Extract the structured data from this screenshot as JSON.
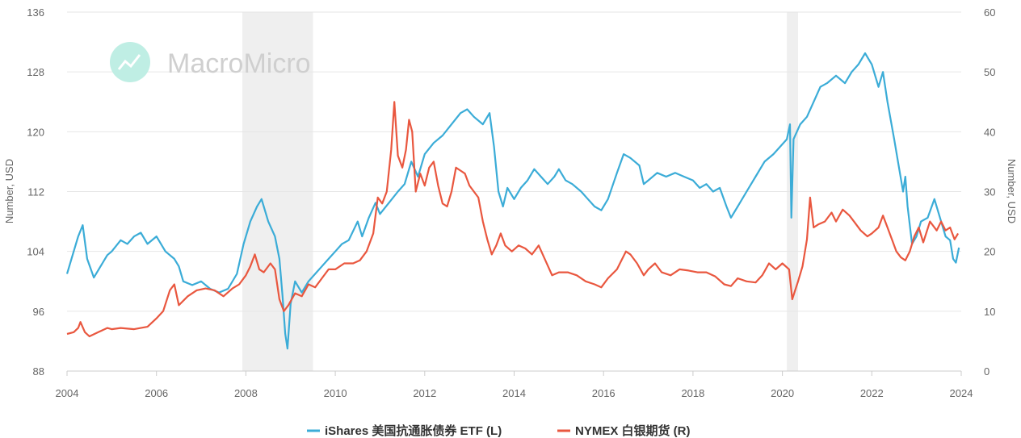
{
  "watermark": {
    "text": "MacroMicro"
  },
  "chart_data": {
    "type": "line",
    "x_ticks": [
      "2004",
      "2006",
      "2008",
      "2010",
      "2012",
      "2014",
      "2016",
      "2018",
      "2020",
      "2022",
      "2024"
    ],
    "y_left": {
      "label": "Number, USD",
      "min": 88,
      "max": 136,
      "ticks": [
        "88",
        "96",
        "104",
        "112",
        "120",
        "128",
        "136"
      ]
    },
    "y_right": {
      "label": "Number, USD",
      "min": 0,
      "max": 60,
      "ticks": [
        "0",
        "10",
        "20",
        "30",
        "40",
        "50",
        "60"
      ]
    },
    "recession_bands": [
      [
        2007.92,
        2009.5
      ],
      [
        2020.1,
        2020.35
      ]
    ],
    "grid": true,
    "legend_position": "bottom-center",
    "series": [
      {
        "name": "iShares 美国抗通胀债券 ETF (L)",
        "axis": "left",
        "color": "#3bacd7",
        "points": [
          [
            2004.0,
            101
          ],
          [
            2004.1,
            103
          ],
          [
            2004.25,
            106
          ],
          [
            2004.35,
            107.5
          ],
          [
            2004.45,
            103
          ],
          [
            2004.6,
            100.5
          ],
          [
            2004.75,
            102
          ],
          [
            2004.9,
            103.5
          ],
          [
            2005.0,
            104
          ],
          [
            2005.2,
            105.5
          ],
          [
            2005.35,
            105
          ],
          [
            2005.5,
            106
          ],
          [
            2005.65,
            106.5
          ],
          [
            2005.8,
            105
          ],
          [
            2006.0,
            106
          ],
          [
            2006.2,
            104
          ],
          [
            2006.4,
            103
          ],
          [
            2006.5,
            102
          ],
          [
            2006.6,
            100
          ],
          [
            2006.8,
            99.5
          ],
          [
            2007.0,
            100
          ],
          [
            2007.2,
            99
          ],
          [
            2007.4,
            98.5
          ],
          [
            2007.6,
            99
          ],
          [
            2007.8,
            101
          ],
          [
            2007.95,
            105
          ],
          [
            2008.1,
            108
          ],
          [
            2008.25,
            110
          ],
          [
            2008.35,
            111
          ],
          [
            2008.5,
            108
          ],
          [
            2008.65,
            106
          ],
          [
            2008.75,
            103
          ],
          [
            2008.82,
            98
          ],
          [
            2008.88,
            93
          ],
          [
            2008.93,
            91
          ],
          [
            2009.0,
            97
          ],
          [
            2009.1,
            100
          ],
          [
            2009.25,
            98.5
          ],
          [
            2009.4,
            100
          ],
          [
            2009.55,
            101
          ],
          [
            2009.7,
            102
          ],
          [
            2009.85,
            103
          ],
          [
            2010.0,
            104
          ],
          [
            2010.15,
            105
          ],
          [
            2010.3,
            105.5
          ],
          [
            2010.5,
            108
          ],
          [
            2010.6,
            106
          ],
          [
            2010.75,
            108.5
          ],
          [
            2010.9,
            110.5
          ],
          [
            2011.0,
            109
          ],
          [
            2011.2,
            110.5
          ],
          [
            2011.4,
            112
          ],
          [
            2011.55,
            113
          ],
          [
            2011.7,
            116
          ],
          [
            2011.85,
            114
          ],
          [
            2012.0,
            117
          ],
          [
            2012.2,
            118.5
          ],
          [
            2012.4,
            119.5
          ],
          [
            2012.6,
            121
          ],
          [
            2012.8,
            122.5
          ],
          [
            2012.95,
            123
          ],
          [
            2013.1,
            122
          ],
          [
            2013.3,
            121
          ],
          [
            2013.45,
            122.5
          ],
          [
            2013.55,
            118
          ],
          [
            2013.65,
            112
          ],
          [
            2013.75,
            110
          ],
          [
            2013.85,
            112.5
          ],
          [
            2014.0,
            111
          ],
          [
            2014.15,
            112.5
          ],
          [
            2014.3,
            113.5
          ],
          [
            2014.45,
            115
          ],
          [
            2014.6,
            114
          ],
          [
            2014.75,
            113
          ],
          [
            2014.9,
            114
          ],
          [
            2015.0,
            115
          ],
          [
            2015.15,
            113.5
          ],
          [
            2015.3,
            113
          ],
          [
            2015.5,
            112
          ],
          [
            2015.65,
            111
          ],
          [
            2015.8,
            110
          ],
          [
            2015.95,
            109.5
          ],
          [
            2016.1,
            111
          ],
          [
            2016.3,
            114.5
          ],
          [
            2016.45,
            117
          ],
          [
            2016.6,
            116.5
          ],
          [
            2016.8,
            115.5
          ],
          [
            2016.9,
            113
          ],
          [
            2017.0,
            113.5
          ],
          [
            2017.2,
            114.5
          ],
          [
            2017.4,
            114
          ],
          [
            2017.6,
            114.5
          ],
          [
            2017.8,
            114
          ],
          [
            2018.0,
            113.5
          ],
          [
            2018.15,
            112.5
          ],
          [
            2018.3,
            113
          ],
          [
            2018.45,
            112
          ],
          [
            2018.6,
            112.5
          ],
          [
            2018.75,
            110
          ],
          [
            2018.85,
            108.5
          ],
          [
            2019.0,
            110
          ],
          [
            2019.2,
            112
          ],
          [
            2019.4,
            114
          ],
          [
            2019.6,
            116
          ],
          [
            2019.8,
            117
          ],
          [
            2019.95,
            118
          ],
          [
            2020.1,
            119
          ],
          [
            2020.17,
            121
          ],
          [
            2020.2,
            108.5
          ],
          [
            2020.25,
            119
          ],
          [
            2020.4,
            121
          ],
          [
            2020.55,
            122
          ],
          [
            2020.7,
            124
          ],
          [
            2020.85,
            126
          ],
          [
            2021.0,
            126.5
          ],
          [
            2021.2,
            127.5
          ],
          [
            2021.4,
            126.5
          ],
          [
            2021.55,
            128
          ],
          [
            2021.7,
            129
          ],
          [
            2021.85,
            130.5
          ],
          [
            2022.0,
            129
          ],
          [
            2022.15,
            126
          ],
          [
            2022.25,
            128
          ],
          [
            2022.35,
            124
          ],
          [
            2022.5,
            119
          ],
          [
            2022.6,
            115.5
          ],
          [
            2022.7,
            112
          ],
          [
            2022.75,
            114
          ],
          [
            2022.8,
            110
          ],
          [
            2022.9,
            105
          ],
          [
            2023.0,
            106
          ],
          [
            2023.1,
            108
          ],
          [
            2023.25,
            108.5
          ],
          [
            2023.4,
            111
          ],
          [
            2023.55,
            108
          ],
          [
            2023.65,
            106
          ],
          [
            2023.75,
            105.5
          ],
          [
            2023.82,
            103
          ],
          [
            2023.88,
            102.5
          ],
          [
            2023.95,
            104.5
          ]
        ]
      },
      {
        "name": "NYMEX 白银期货 (R)",
        "axis": "right",
        "color": "#e9573f",
        "points": [
          [
            2004.0,
            6.2
          ],
          [
            2004.15,
            6.5
          ],
          [
            2004.25,
            7.2
          ],
          [
            2004.3,
            8.2
          ],
          [
            2004.4,
            6.5
          ],
          [
            2004.5,
            5.8
          ],
          [
            2004.7,
            6.5
          ],
          [
            2004.9,
            7.2
          ],
          [
            2005.0,
            7.0
          ],
          [
            2005.2,
            7.2
          ],
          [
            2005.5,
            7.0
          ],
          [
            2005.8,
            7.4
          ],
          [
            2006.0,
            8.8
          ],
          [
            2006.15,
            10
          ],
          [
            2006.3,
            13.5
          ],
          [
            2006.4,
            14.5
          ],
          [
            2006.5,
            11
          ],
          [
            2006.7,
            12.5
          ],
          [
            2006.9,
            13.5
          ],
          [
            2007.1,
            13.8
          ],
          [
            2007.3,
            13.5
          ],
          [
            2007.5,
            12.5
          ],
          [
            2007.7,
            13.8
          ],
          [
            2007.85,
            14.5
          ],
          [
            2008.0,
            16
          ],
          [
            2008.1,
            17.5
          ],
          [
            2008.2,
            19.5
          ],
          [
            2008.3,
            17
          ],
          [
            2008.4,
            16.5
          ],
          [
            2008.55,
            18
          ],
          [
            2008.65,
            17
          ],
          [
            2008.75,
            12
          ],
          [
            2008.85,
            10
          ],
          [
            2008.95,
            11
          ],
          [
            2009.1,
            13
          ],
          [
            2009.25,
            12.5
          ],
          [
            2009.4,
            14.5
          ],
          [
            2009.55,
            14
          ],
          [
            2009.7,
            15.5
          ],
          [
            2009.85,
            17
          ],
          [
            2010.0,
            17
          ],
          [
            2010.2,
            18
          ],
          [
            2010.4,
            18
          ],
          [
            2010.55,
            18.5
          ],
          [
            2010.7,
            20
          ],
          [
            2010.85,
            23
          ],
          [
            2010.95,
            29
          ],
          [
            2011.05,
            28
          ],
          [
            2011.15,
            30
          ],
          [
            2011.25,
            37
          ],
          [
            2011.32,
            45
          ],
          [
            2011.4,
            36
          ],
          [
            2011.5,
            34
          ],
          [
            2011.58,
            37
          ],
          [
            2011.65,
            42
          ],
          [
            2011.72,
            40
          ],
          [
            2011.8,
            30
          ],
          [
            2011.9,
            33
          ],
          [
            2012.0,
            31
          ],
          [
            2012.1,
            34
          ],
          [
            2012.2,
            35
          ],
          [
            2012.3,
            31
          ],
          [
            2012.4,
            28
          ],
          [
            2012.5,
            27.5
          ],
          [
            2012.6,
            30
          ],
          [
            2012.7,
            34
          ],
          [
            2012.8,
            33.5
          ],
          [
            2012.9,
            33
          ],
          [
            2013.0,
            31
          ],
          [
            2013.2,
            29
          ],
          [
            2013.3,
            25
          ],
          [
            2013.4,
            22
          ],
          [
            2013.5,
            19.5
          ],
          [
            2013.6,
            21
          ],
          [
            2013.7,
            23
          ],
          [
            2013.8,
            21
          ],
          [
            2013.95,
            20
          ],
          [
            2014.1,
            21
          ],
          [
            2014.25,
            20.5
          ],
          [
            2014.4,
            19.5
          ],
          [
            2014.55,
            21
          ],
          [
            2014.7,
            18.5
          ],
          [
            2014.85,
            16
          ],
          [
            2015.0,
            16.5
          ],
          [
            2015.2,
            16.5
          ],
          [
            2015.4,
            16
          ],
          [
            2015.6,
            15
          ],
          [
            2015.8,
            14.5
          ],
          [
            2015.95,
            14
          ],
          [
            2016.1,
            15.5
          ],
          [
            2016.3,
            17
          ],
          [
            2016.5,
            20
          ],
          [
            2016.6,
            19.5
          ],
          [
            2016.75,
            18
          ],
          [
            2016.9,
            16
          ],
          [
            2017.0,
            17
          ],
          [
            2017.15,
            18
          ],
          [
            2017.3,
            16.5
          ],
          [
            2017.5,
            16
          ],
          [
            2017.7,
            17
          ],
          [
            2017.9,
            16.8
          ],
          [
            2018.1,
            16.5
          ],
          [
            2018.3,
            16.5
          ],
          [
            2018.5,
            15.8
          ],
          [
            2018.7,
            14.5
          ],
          [
            2018.85,
            14.2
          ],
          [
            2019.0,
            15.5
          ],
          [
            2019.2,
            15
          ],
          [
            2019.4,
            14.8
          ],
          [
            2019.55,
            16
          ],
          [
            2019.7,
            18
          ],
          [
            2019.85,
            17
          ],
          [
            2020.0,
            18
          ],
          [
            2020.15,
            17
          ],
          [
            2020.22,
            12
          ],
          [
            2020.35,
            15
          ],
          [
            2020.45,
            17.5
          ],
          [
            2020.55,
            22
          ],
          [
            2020.62,
            29
          ],
          [
            2020.7,
            24
          ],
          [
            2020.8,
            24.5
          ],
          [
            2020.95,
            25
          ],
          [
            2021.1,
            26.5
          ],
          [
            2021.2,
            25
          ],
          [
            2021.35,
            27
          ],
          [
            2021.5,
            26
          ],
          [
            2021.6,
            25
          ],
          [
            2021.75,
            23.5
          ],
          [
            2021.9,
            22.5
          ],
          [
            2022.0,
            23
          ],
          [
            2022.15,
            24
          ],
          [
            2022.25,
            26
          ],
          [
            2022.35,
            24
          ],
          [
            2022.45,
            22
          ],
          [
            2022.55,
            20
          ],
          [
            2022.65,
            19
          ],
          [
            2022.75,
            18.5
          ],
          [
            2022.85,
            20
          ],
          [
            2022.95,
            22.5
          ],
          [
            2023.05,
            24
          ],
          [
            2023.15,
            21.5
          ],
          [
            2023.3,
            25
          ],
          [
            2023.45,
            23.5
          ],
          [
            2023.55,
            25
          ],
          [
            2023.65,
            23.5
          ],
          [
            2023.75,
            24
          ],
          [
            2023.85,
            22
          ],
          [
            2023.93,
            23
          ]
        ]
      }
    ]
  }
}
